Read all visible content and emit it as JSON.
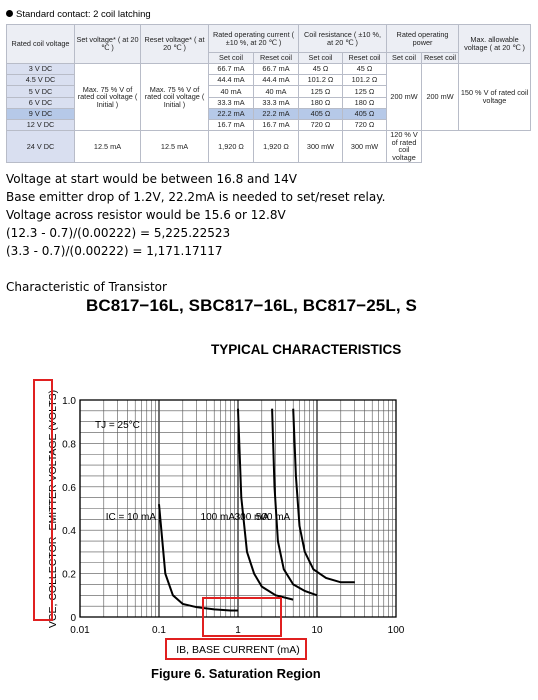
{
  "relay": {
    "title": "Standard contact: 2 coil latching",
    "headers": {
      "rated_coil_voltage": "Rated coil voltage",
      "set_voltage": "Set voltage* ( at 20 ℃ )",
      "reset_voltage": "Reset voltage* ( at 20 ℃ )",
      "rated_operating_current": "Rated operating current ( ±10 %, at 20 ℃ )",
      "coil_resistance": "Coil resistance ( ±10 %, at 20 ℃ )",
      "rated_operating_power": "Rated operating power",
      "max_allowable_voltage": "Max. allowable voltage ( at 20 ℃ )",
      "set_coil": "Set coil",
      "reset_coil": "Reset coil"
    },
    "rows": [
      {
        "voltage": "3 V DC",
        "set_current": "66.7 mA",
        "reset_current": "66.7 mA",
        "set_res": "45 Ω",
        "reset_res": "45 Ω"
      },
      {
        "voltage": "4.5 V DC",
        "set_current": "44.4 mA",
        "reset_current": "44.4 mA",
        "set_res": "101.2 Ω",
        "reset_res": "101.2 Ω"
      },
      {
        "voltage": "5 V DC",
        "set_current": "40 mA",
        "reset_current": "40 mA",
        "set_res": "125 Ω",
        "reset_res": "125 Ω"
      },
      {
        "voltage": "6 V DC",
        "set_current": "33.3 mA",
        "reset_current": "33.3 mA",
        "set_res": "180 Ω",
        "reset_res": "180 Ω"
      },
      {
        "voltage": "9 V DC",
        "set_current": "22.2 mA",
        "reset_current": "22.2 mA",
        "set_res": "405 Ω",
        "reset_res": "405 Ω"
      },
      {
        "voltage": "12 V DC",
        "set_current": "16.7 mA",
        "reset_current": "16.7 mA",
        "set_res": "720 Ω",
        "reset_res": "720 Ω"
      },
      {
        "voltage": "24 V DC",
        "set_current": "12.5 mA",
        "reset_current": "12.5 mA",
        "set_res": "1,920 Ω",
        "reset_res": "1,920 Ω"
      }
    ],
    "highlighted_row": 4,
    "set_voltage_spec": "Max. 75 % V of rated coil voltage ( Initial )",
    "reset_voltage_spec": "Max. 75 % V of rated coil voltage ( Initial )",
    "power_low": "200 mW",
    "power_high": "300 mW",
    "max_voltage_low": "150 % V of rated coil voltage",
    "max_voltage_high": "120 % V of rated coil voltage"
  },
  "notes": {
    "line1": "Voltage at start would be between 16.8 and 14V",
    "line2": "Base emitter drop of 1.2V, 22.2mA is needed to set/reset relay.",
    "line3": "Voltage across resistor would be 15.6 or 12.8V",
    "line4": "(12.3 - 0.7)/(0.00222) = 5,225.22523",
    "line5": "(3.3 - 0.7)/(0.00222) = 1,171.17117",
    "line6": "Characteristic of Transistor"
  },
  "datasheet": {
    "part_title": "BC817−16L, SBC817−16L, BC817−25L, S",
    "section_title": "TYPICAL CHARACTERISTICS",
    "figure_caption": "Figure 6. Saturation Region"
  },
  "chart_data": {
    "type": "line",
    "title": "",
    "xlabel": "IB, BASE CURRENT (mA)",
    "ylabel": "VCE, COLLECTOR−EMITTER VOLTAGE (VOLTS)",
    "x_scale": "log",
    "xlim": [
      0.01,
      100
    ],
    "ylim": [
      0,
      1.0
    ],
    "x_ticks": [
      "0.01",
      "0.1",
      "1",
      "10",
      "100"
    ],
    "y_ticks": [
      "0",
      "0.2",
      "0.4",
      "0.6",
      "0.8",
      "1.0"
    ],
    "annotation": "TJ = 25°C",
    "grid": true,
    "highlight_color": "#e02020",
    "series": [
      {
        "name": "IC = 10 mA",
        "x": [
          0.1,
          0.12,
          0.15,
          0.2,
          0.3,
          0.5,
          0.8,
          1.0
        ],
        "y": [
          0.52,
          0.2,
          0.1,
          0.06,
          0.045,
          0.035,
          0.03,
          0.03
        ]
      },
      {
        "name": "100 mA",
        "x": [
          1.0,
          1.1,
          1.3,
          1.6,
          2.0,
          3.0,
          5.0
        ],
        "y": [
          0.96,
          0.55,
          0.3,
          0.2,
          0.14,
          0.1,
          0.08
        ]
      },
      {
        "name": "300 mA",
        "x": [
          2.7,
          2.9,
          3.2,
          3.8,
          5.0,
          7.0,
          10.0
        ],
        "y": [
          0.96,
          0.6,
          0.35,
          0.22,
          0.15,
          0.12,
          0.1
        ]
      },
      {
        "name": "500 mA",
        "x": [
          5.0,
          5.4,
          6.0,
          7.0,
          9.0,
          13.0,
          20.0,
          30.0
        ],
        "y": [
          0.96,
          0.65,
          0.42,
          0.3,
          0.22,
          0.18,
          0.16,
          0.16
        ]
      }
    ]
  }
}
